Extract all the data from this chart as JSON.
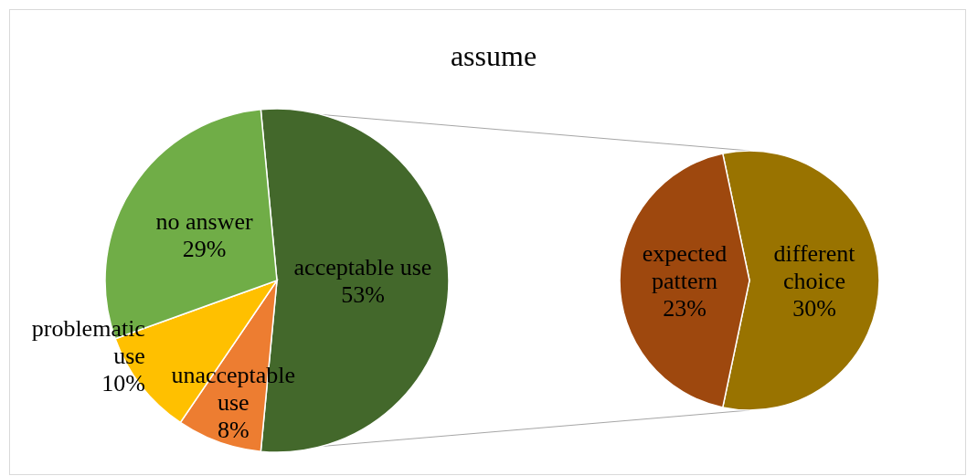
{
  "chart_data": [
    {
      "type": "pie",
      "title": "assume",
      "categories": [
        "acceptable use",
        "unacceptable use",
        "problematic use",
        "no answer"
      ],
      "values": [
        53,
        8,
        10,
        29
      ],
      "value_labels": [
        "53%",
        "8%",
        "10%",
        "29%"
      ],
      "colors": [
        "#43682b",
        "#ed7d31",
        "#ffc000",
        "#70ad47"
      ]
    },
    {
      "type": "pie",
      "categories": [
        "different choice",
        "expected pattern"
      ],
      "values": [
        30,
        23
      ],
      "value_labels": [
        "30%",
        "23%"
      ],
      "colors": [
        "#997300",
        "#9e480e"
      ]
    }
  ]
}
